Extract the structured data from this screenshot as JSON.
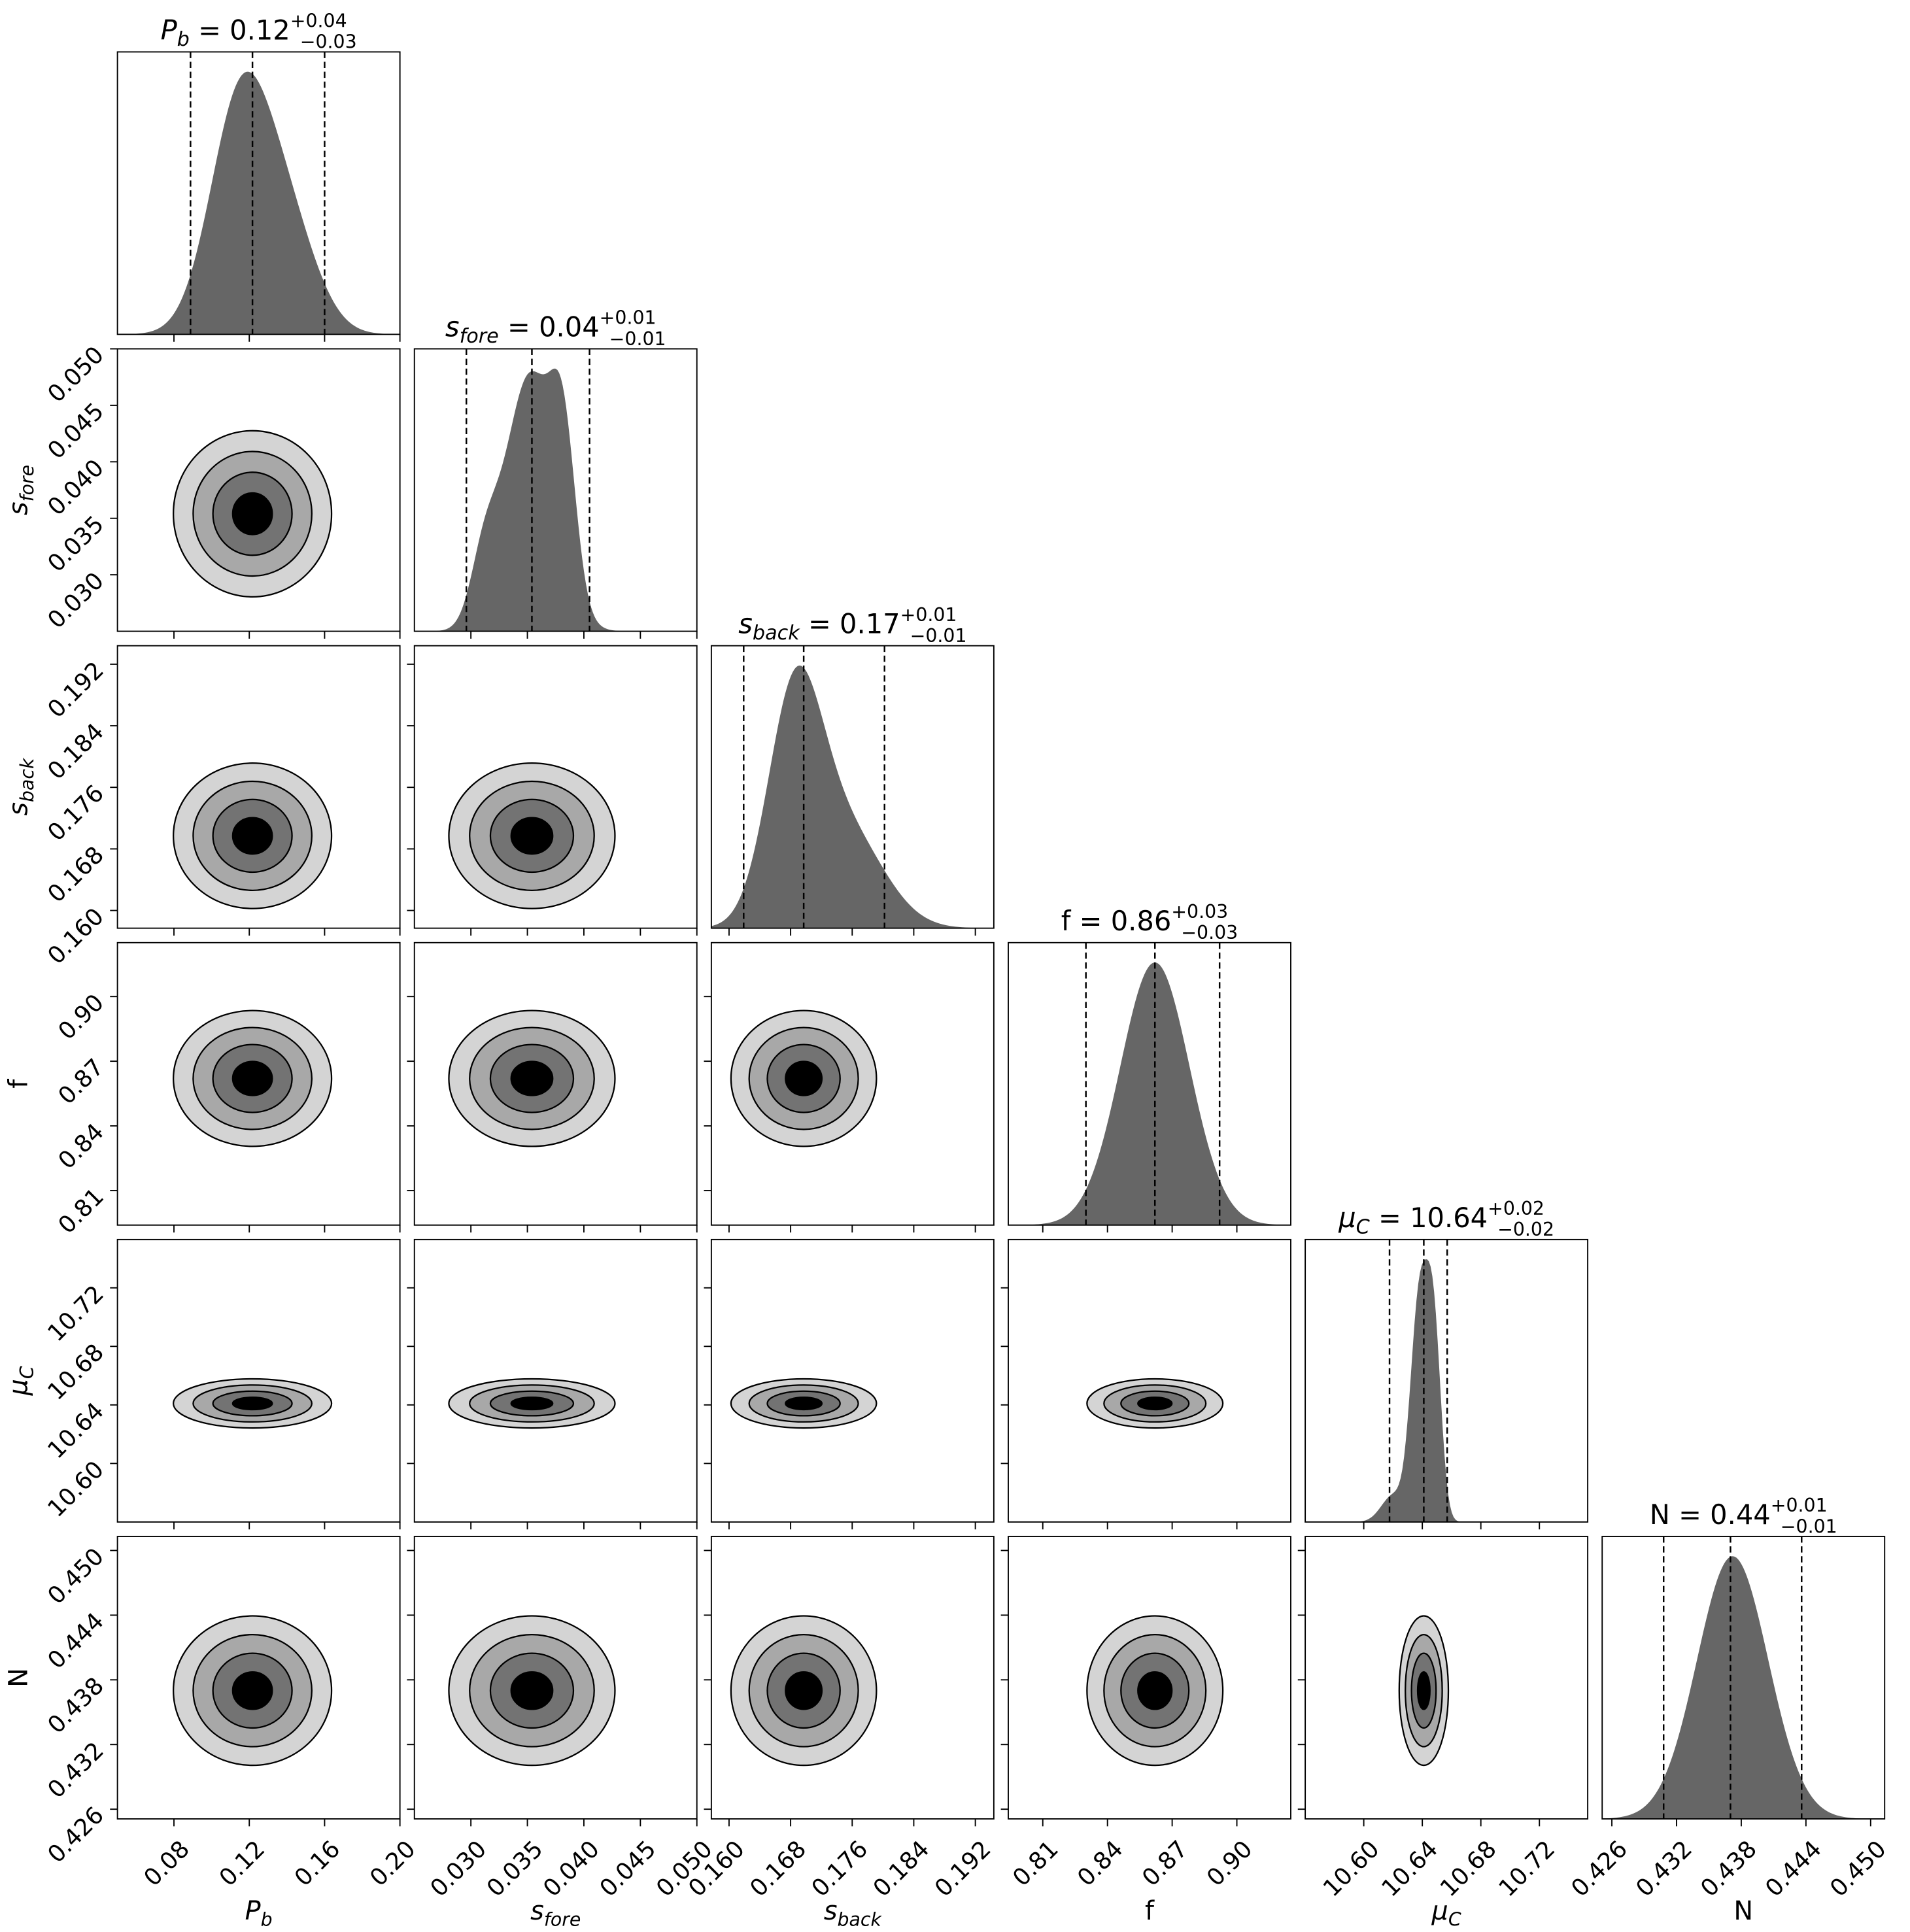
{
  "chart_data": {
    "type": "corner",
    "title": "",
    "contour_levels_sigma": [
      0.5,
      1.0,
      1.5,
      2.0
    ],
    "colors": {
      "hist_fill": "#666666",
      "contour_fills": [
        "#d4d4d4",
        "#a8a8a8",
        "#737373",
        "#000000"
      ],
      "quantile_line": "#000000"
    },
    "parameters": [
      {
        "key": "Pb",
        "label": "P",
        "label_sub": "b",
        "italic": true,
        "title_value": "0.12",
        "title_plus": "+0.04",
        "title_minus": "−0.03",
        "quantiles": [
          0.0888,
          0.1217,
          0.16
        ],
        "range": [
          0.05,
          0.2
        ],
        "ticks": [
          "0.08",
          "0.12",
          "0.16",
          "0.20"
        ],
        "tick_values": [
          0.08,
          0.12,
          0.16,
          0.2
        ],
        "hist_components": [
          {
            "mean": 0.115,
            "sigma": 0.016,
            "weight": 1.0
          },
          {
            "mean": 0.14,
            "sigma": 0.016,
            "weight": 0.45
          }
        ]
      },
      {
        "key": "sfore",
        "label": "s",
        "label_sub": "fore",
        "italic": true,
        "title_value": "0.04",
        "title_plus": "+0.01",
        "title_minus": "−0.01",
        "quantiles": [
          0.0296,
          0.0354,
          0.0405
        ],
        "range": [
          0.025,
          0.05
        ],
        "ticks": [
          "0.030",
          "0.035",
          "0.040",
          "0.045",
          "0.050"
        ],
        "tick_values": [
          0.03,
          0.035,
          0.04,
          0.045,
          0.05
        ],
        "hist_components": [
          {
            "mean": 0.0352,
            "sigma": 0.0022,
            "weight": 1.0
          },
          {
            "mean": 0.0382,
            "sigma": 0.0011,
            "weight": 0.55
          },
          {
            "mean": 0.0312,
            "sigma": 0.0012,
            "weight": 0.25
          }
        ]
      },
      {
        "key": "sback",
        "label": "s",
        "label_sub": "back",
        "italic": true,
        "title_value": "0.17",
        "title_plus": "+0.01",
        "title_minus": "−0.01",
        "quantiles": [
          0.1619,
          0.1697,
          0.1802
        ],
        "range": [
          0.1577,
          0.1944
        ],
        "ticks": [
          "0.160",
          "0.168",
          "0.176",
          "0.184",
          "0.192"
        ],
        "tick_values": [
          0.16,
          0.168,
          0.176,
          0.184,
          0.192
        ],
        "hist_components": [
          {
            "mean": 0.1685,
            "sigma": 0.0035,
            "weight": 1.0
          },
          {
            "mean": 0.175,
            "sigma": 0.005,
            "weight": 0.45
          }
        ]
      },
      {
        "key": "f",
        "label": "f",
        "label_sub": "",
        "italic": false,
        "title_value": "0.86",
        "title_plus": "+0.03",
        "title_minus": "−0.03",
        "quantiles": [
          0.83,
          0.862,
          0.892
        ],
        "range": [
          0.794,
          0.925
        ],
        "ticks": [
          "0.81",
          "0.84",
          "0.87",
          "0.90"
        ],
        "tick_values": [
          0.81,
          0.84,
          0.87,
          0.9
        ],
        "hist_components": [
          {
            "mean": 0.862,
            "sigma": 0.016,
            "weight": 1.0
          }
        ]
      },
      {
        "key": "muC",
        "label": "μ",
        "label_sub": "C",
        "italic": true,
        "title_value": "10.64",
        "title_plus": "+0.02",
        "title_minus": "−0.02",
        "quantiles": [
          10.6176,
          10.641,
          10.657
        ],
        "range": [
          10.56,
          10.753
        ],
        "ticks": [
          "10.60",
          "10.64",
          "10.68",
          "10.72"
        ],
        "tick_values": [
          10.6,
          10.64,
          10.68,
          10.72
        ],
        "hist_components": [
          {
            "mean": 10.638,
            "sigma": 0.006,
            "weight": 1.0
          },
          {
            "mean": 10.648,
            "sigma": 0.005,
            "weight": 0.8
          },
          {
            "mean": 10.62,
            "sigma": 0.008,
            "weight": 0.12
          }
        ]
      },
      {
        "key": "N",
        "label": "N",
        "label_sub": "",
        "italic": false,
        "title_value": "0.44",
        "title_plus": "+0.01",
        "title_minus": "−0.01",
        "quantiles": [
          0.4308,
          0.437,
          0.4436
        ],
        "range": [
          0.4251,
          0.4513
        ],
        "ticks": [
          "0.426",
          "0.432",
          "0.438",
          "0.444",
          "0.450"
        ],
        "tick_values": [
          0.426,
          0.432,
          0.438,
          0.444,
          0.45
        ],
        "hist_components": [
          {
            "mean": 0.4372,
            "sigma": 0.0033,
            "weight": 1.0
          }
        ]
      }
    ],
    "contour_widths_sigma": [
      0.02,
      0.0035,
      0.0045,
      0.015,
      0.008,
      0.0033
    ]
  }
}
